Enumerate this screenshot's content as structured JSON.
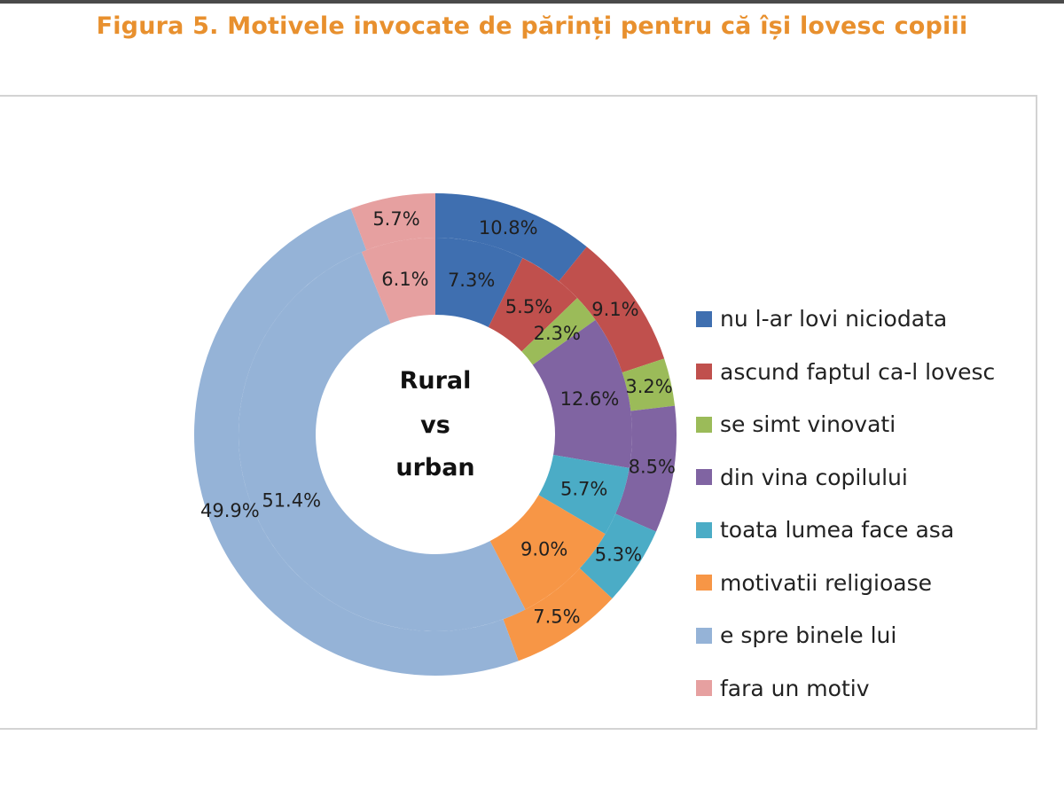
{
  "title": "Figura 5. Motivele invocate de părinți pentru că își lovesc copiii",
  "chart_data": {
    "type": "donut",
    "center_label": [
      "Rural",
      "vs",
      "urban"
    ],
    "categories": [
      "nu l-ar lovi niciodata",
      "ascund faptul ca-l lovesc",
      "se simt vinovati",
      "din vina copilului",
      "toata lumea face asa",
      "motivatii religioase",
      "e spre binele lui",
      "fara un motiv"
    ],
    "colors": [
      "#3f6fb0",
      "#c0504d",
      "#9bbb59",
      "#8064a2",
      "#4bacc6",
      "#f79646",
      "#95b3d7",
      "#e6a0a0"
    ],
    "series": [
      {
        "ring": "outer",
        "values": [
          10.8,
          9.1,
          3.2,
          8.5,
          5.3,
          7.5,
          49.9,
          5.7
        ],
        "labels": [
          "10.8%",
          "9.1%",
          "3.2%",
          "8.5%",
          "5.3%",
          "7.5%",
          "49.9%",
          "5.7%"
        ]
      },
      {
        "ring": "inner",
        "values": [
          7.3,
          5.5,
          2.3,
          12.6,
          5.7,
          9.0,
          51.4,
          6.1
        ],
        "labels": [
          "7.3%",
          "5.5%",
          "2.3%",
          "12.6%",
          "5.7%",
          "9.0%",
          "51.4%",
          "6.1%"
        ]
      }
    ],
    "legend": {
      "position": "right",
      "items": [
        "nu l-ar lovi niciodata",
        "ascund faptul ca-l lovesc",
        "se simt vinovati",
        "din vina copilului",
        "toata lumea face asa",
        "motivatii religioase",
        "e spre binele lui",
        "fara un motiv"
      ]
    }
  }
}
